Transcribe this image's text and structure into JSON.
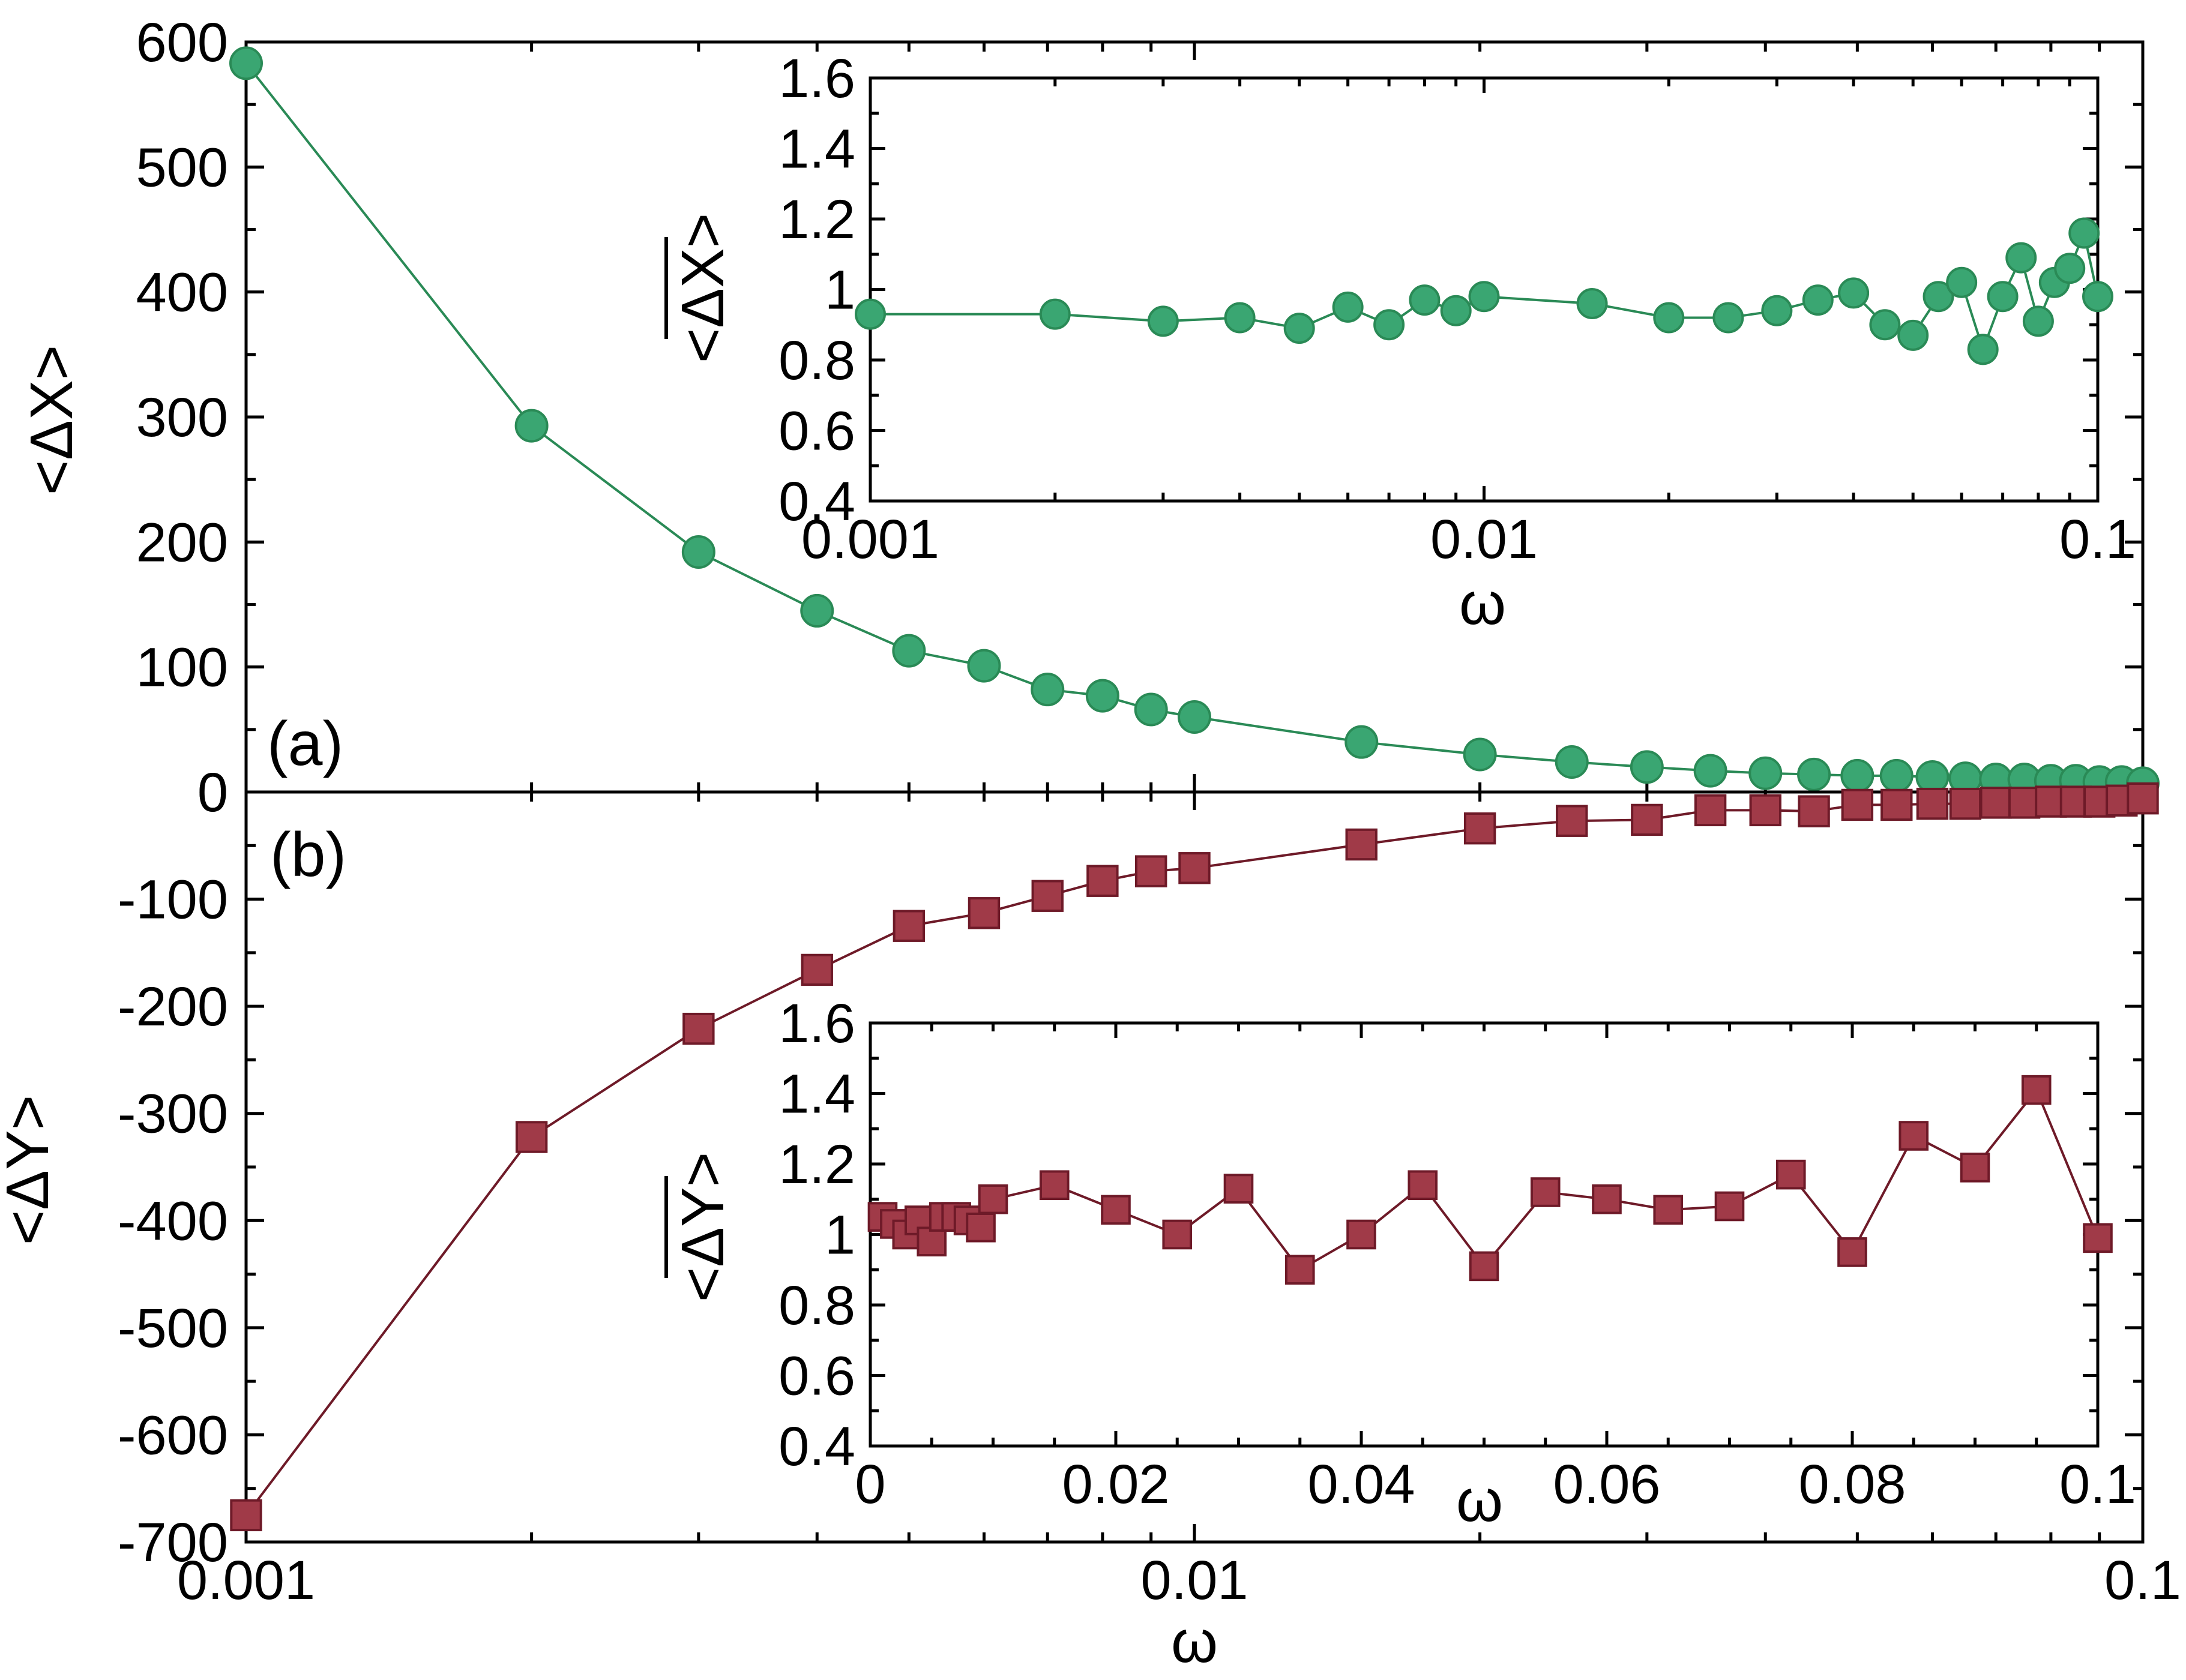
{
  "chart_data": [
    {
      "id": "panel_a_main",
      "type": "line",
      "panel_label": "(a)",
      "xscale": "log",
      "xlim": [
        0.001,
        0.1
      ],
      "ylim": [
        0,
        600
      ],
      "xlabel": "",
      "ylabel": "<ΔX>",
      "yticks": [
        "0",
        "100",
        "200",
        "300",
        "400",
        "500",
        "600"
      ],
      "xticks": [],
      "color": "#3aa672",
      "stroke": "#2a8a56",
      "marker": "circle",
      "x": [
        0.001,
        0.002,
        0.003,
        0.004,
        0.005,
        0.006,
        0.007,
        0.008,
        0.009,
        0.01,
        0.015,
        0.02,
        0.025,
        0.03,
        0.035,
        0.04,
        0.045,
        0.05,
        0.055,
        0.06,
        0.065,
        0.07,
        0.075,
        0.08,
        0.085,
        0.09,
        0.095,
        0.1
      ],
      "y": [
        583,
        293,
        192,
        145,
        113,
        101,
        82,
        77,
        66,
        60,
        40,
        30,
        24,
        20,
        17,
        15,
        14,
        13,
        13,
        12,
        11,
        10,
        10,
        9,
        9,
        8,
        8,
        7
      ]
    },
    {
      "id": "panel_b_main",
      "type": "line",
      "panel_label": "(b)",
      "xscale": "log",
      "xlim": [
        0.001,
        0.1
      ],
      "ylim": [
        -700,
        0
      ],
      "xlabel": "ω",
      "ylabel": "<ΔY>",
      "yticks": [
        "-700",
        "-600",
        "-500",
        "-400",
        "-300",
        "-200",
        "-100",
        "0"
      ],
      "xticks": [
        "0.001",
        "0.01",
        "0.1"
      ],
      "color": "#a03a48",
      "stroke": "#6e1a28",
      "marker": "square",
      "x": [
        0.001,
        0.002,
        0.003,
        0.004,
        0.005,
        0.006,
        0.007,
        0.008,
        0.009,
        0.01,
        0.015,
        0.02,
        0.025,
        0.03,
        0.035,
        0.04,
        0.045,
        0.05,
        0.055,
        0.06,
        0.065,
        0.07,
        0.075,
        0.08,
        0.085,
        0.09,
        0.095,
        0.1
      ],
      "y": [
        -675,
        -322,
        -221,
        -166,
        -125,
        -113,
        -97,
        -83,
        -74,
        -71,
        -49,
        -34,
        -27,
        -26,
        -17,
        -17,
        -18,
        -12,
        -12,
        -11,
        -11,
        -10,
        -10,
        -9,
        -9,
        -9,
        -8,
        -6
      ]
    },
    {
      "id": "inset_a",
      "type": "line",
      "xscale": "log",
      "xlim": [
        0.001,
        0.1
      ],
      "ylim": [
        0.4,
        1.6
      ],
      "xlabel": "ω",
      "ylabel": "<ΔX>",
      "ylabel_overline": true,
      "xticks": [
        "0.001",
        "0.01",
        "0.1"
      ],
      "yticks": [
        "0.4",
        "0.6",
        "0.8",
        "1",
        "1.2",
        "1.4",
        "1.6"
      ],
      "color": "#3aa672",
      "stroke": "#2a8a56",
      "marker": "circle",
      "x": [
        0.001,
        0.002,
        0.003,
        0.004,
        0.005,
        0.006,
        0.007,
        0.008,
        0.009,
        0.01,
        0.015,
        0.02,
        0.025,
        0.03,
        0.035,
        0.04,
        0.045,
        0.05,
        0.055,
        0.06,
        0.065,
        0.07,
        0.075,
        0.08,
        0.085,
        0.09,
        0.095,
        0.1
      ],
      "y": [
        0.93,
        0.93,
        0.91,
        0.92,
        0.89,
        0.95,
        0.9,
        0.97,
        0.94,
        0.98,
        0.96,
        0.92,
        0.92,
        0.94,
        0.97,
        0.99,
        0.9,
        0.87,
        0.98,
        1.02,
        0.83,
        0.98,
        1.09,
        0.91,
        1.02,
        1.06,
        1.16,
        0.98
      ]
    },
    {
      "id": "inset_b",
      "type": "line",
      "xscale": "linear",
      "xlim": [
        0,
        0.1
      ],
      "ylim": [
        0.4,
        1.6
      ],
      "xlabel": "ω",
      "ylabel": "<ΔY>",
      "ylabel_overline": true,
      "xticks": [
        "0",
        "0.02",
        "0.04",
        "0.06",
        "0.08",
        "0.1"
      ],
      "yticks": [
        "0.4",
        "0.6",
        "0.8",
        "1",
        "1.2",
        "1.4",
        "1.6"
      ],
      "color": "#a03a48",
      "stroke": "#6e1a28",
      "marker": "square",
      "x": [
        0.001,
        0.002,
        0.003,
        0.004,
        0.005,
        0.006,
        0.007,
        0.008,
        0.009,
        0.01,
        0.015,
        0.02,
        0.025,
        0.03,
        0.035,
        0.04,
        0.045,
        0.05,
        0.055,
        0.06,
        0.065,
        0.07,
        0.075,
        0.08,
        0.085,
        0.09,
        0.095,
        0.1
      ],
      "y": [
        1.05,
        1.03,
        1.0,
        1.04,
        0.98,
        1.05,
        1.05,
        1.04,
        1.02,
        1.1,
        1.14,
        1.07,
        1.0,
        1.13,
        0.9,
        1.0,
        1.14,
        0.91,
        1.12,
        1.1,
        1.07,
        1.08,
        1.17,
        0.95,
        1.28,
        1.19,
        1.41,
        0.99
      ]
    }
  ]
}
